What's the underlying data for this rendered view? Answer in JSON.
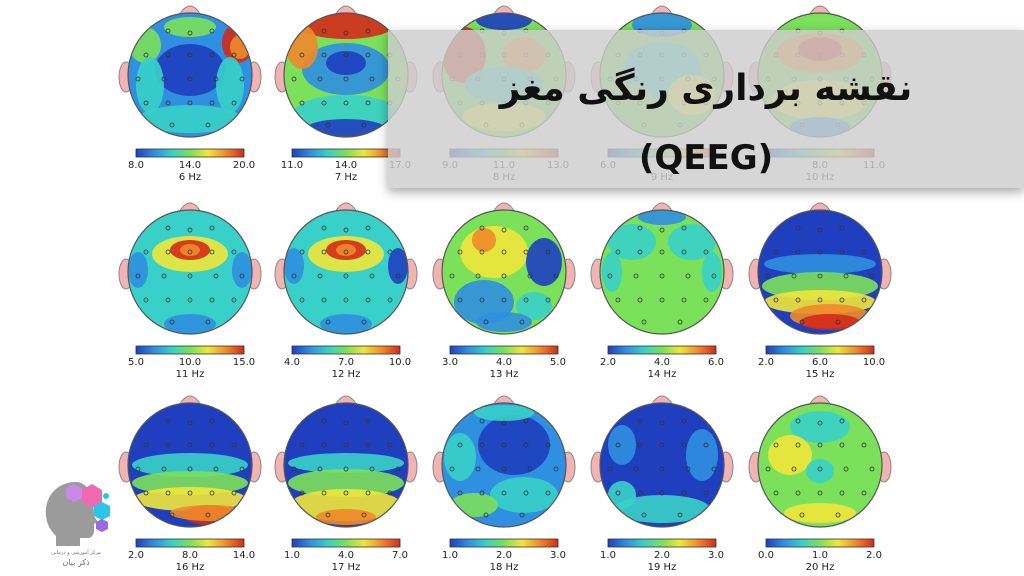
{
  "title": {
    "line1": "نقشه برداری رنگی مغز",
    "line2": "(QEEG)"
  },
  "logo": {
    "line1": "مرکز آموزشی و درمانی",
    "line2": "ذکر بیان"
  },
  "maps": [
    {
      "label": "6 Hz",
      "ticks": [
        "8.0",
        "14.0",
        "20.0"
      ]
    },
    {
      "label": "7 Hz",
      "ticks": [
        "11.0",
        "14.0",
        "17.0"
      ]
    },
    {
      "label": "8 Hz",
      "ticks": [
        "9.0",
        "11.0",
        "13.0"
      ]
    },
    {
      "label": "9 Hz",
      "ticks": [
        "6.0",
        "",
        ""
      ]
    },
    {
      "label": "10 Hz",
      "ticks": [
        "",
        "8.0",
        "11.0"
      ]
    },
    {
      "label": "11 Hz",
      "ticks": [
        "5.0",
        "10.0",
        "15.0"
      ]
    },
    {
      "label": "12 Hz",
      "ticks": [
        "4.0",
        "7.0",
        "10.0"
      ]
    },
    {
      "label": "13 Hz",
      "ticks": [
        "3.0",
        "4.0",
        "5.0"
      ]
    },
    {
      "label": "14 Hz",
      "ticks": [
        "2.0",
        "4.0",
        "6.0"
      ]
    },
    {
      "label": "15 Hz",
      "ticks": [
        "2.0",
        "6.0",
        "10.0"
      ]
    },
    {
      "label": "16 Hz",
      "ticks": [
        "2.0",
        "8.0",
        "14.0"
      ]
    },
    {
      "label": "17 Hz",
      "ticks": [
        "1.0",
        "4.0",
        "7.0"
      ]
    },
    {
      "label": "18 Hz",
      "ticks": [
        "1.0",
        "2.0",
        "3.0"
      ]
    },
    {
      "label": "19 Hz",
      "ticks": [
        "1.0",
        "2.0",
        "3.0"
      ]
    },
    {
      "label": "20 Hz",
      "ticks": [
        "0.0",
        "1.0",
        "2.0"
      ]
    }
  ],
  "colors": {
    "scale": [
      "#1f3fbf",
      "#2f8fe0",
      "#38d0c8",
      "#7be05a",
      "#f0e63a",
      "#f08a2a",
      "#d42a1a"
    ],
    "ear": "#f2b3b3",
    "nose": "#f2b3b3",
    "banner": "#cdcdcd",
    "logo_pink": "#f06ab0",
    "logo_cyan": "#28c6e8",
    "logo_purple": "#9a6ae0"
  }
}
